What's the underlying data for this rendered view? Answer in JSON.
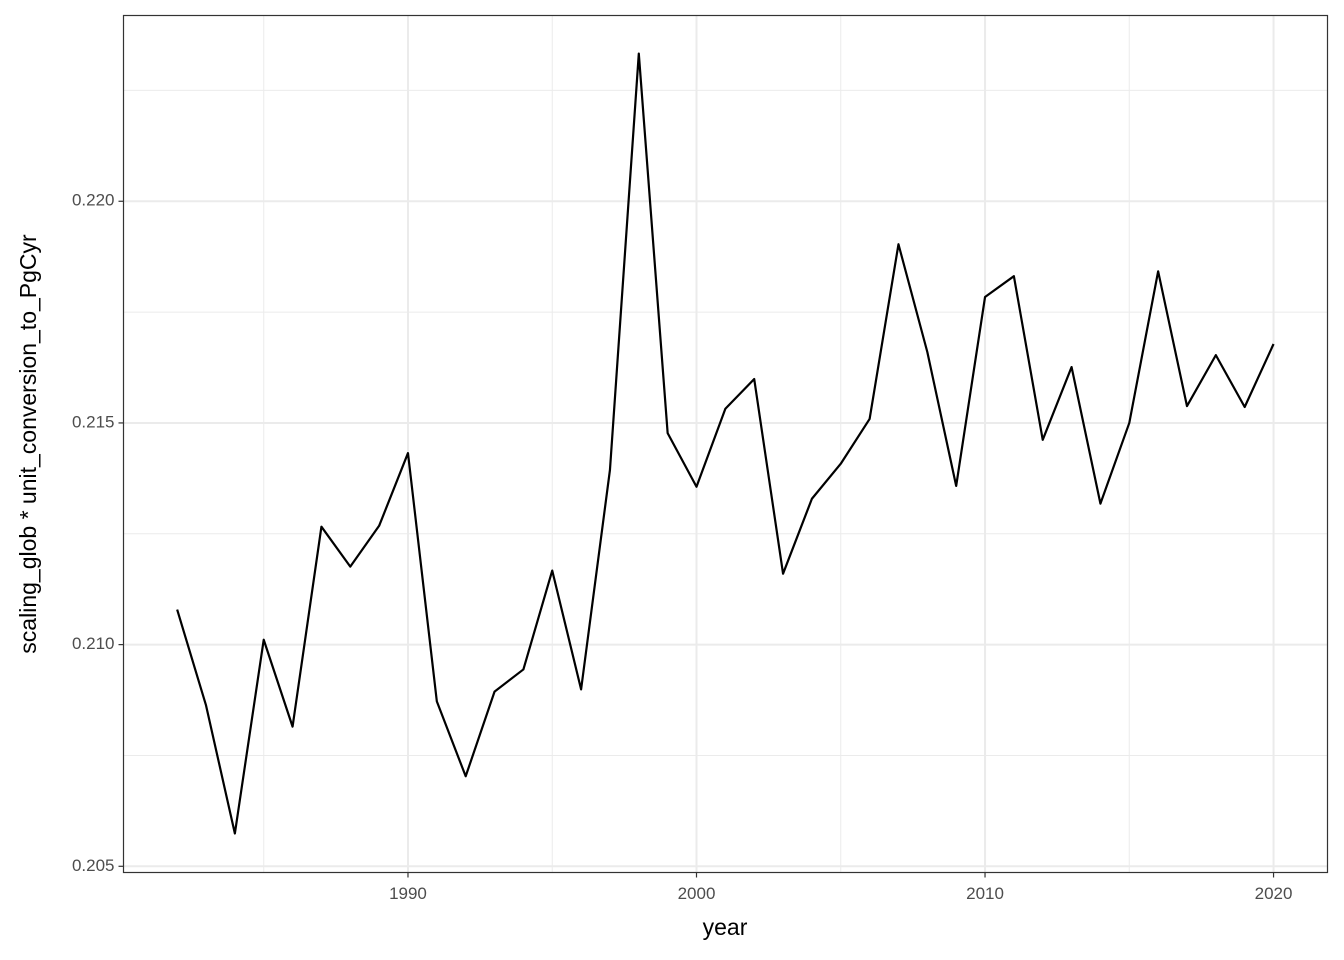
{
  "chart_data": {
    "type": "line",
    "x_label": "year",
    "y_label": "scaling_glob * unit_conversion_to_PgCyr",
    "x": [
      1982,
      1983,
      1984,
      1985,
      1986,
      1987,
      1988,
      1989,
      1990,
      1991,
      1992,
      1993,
      1994,
      1995,
      1996,
      1997,
      1998,
      1999,
      2000,
      2001,
      2002,
      2003,
      2004,
      2005,
      2006,
      2007,
      2008,
      2009,
      2010,
      2011,
      2012,
      2013,
      2014,
      2015,
      2016,
      2017,
      2018,
      2019,
      2020
    ],
    "series": [
      {
        "color": "#000000",
        "values": [
          0.21079,
          0.20863,
          0.20574,
          0.21011,
          0.20815,
          0.21266,
          0.21176,
          0.21268,
          0.21432,
          0.20872,
          0.20703,
          0.20894,
          0.20944,
          0.21167,
          0.20899,
          0.21394,
          0.22333,
          0.21477,
          0.21356,
          0.21532,
          0.21599,
          0.2116,
          0.21329,
          0.21408,
          0.21509,
          0.21903,
          0.2166,
          0.21358,
          0.21784,
          0.21831,
          0.21462,
          0.21626,
          0.21318,
          0.215,
          0.21842,
          0.21538,
          0.21653,
          0.21536,
          0.21678
        ]
      }
    ],
    "xlim": [
      1980.14,
      2021.87
    ],
    "ylim": [
      0.20486,
      0.22419
    ],
    "xticks": [
      1990,
      2000,
      2010,
      2020
    ],
    "yticks": [
      0.205,
      {
        "value": 0.21,
        "label": "0.210"
      },
      0.215,
      {
        "value": 0.22,
        "label": "0.220"
      }
    ],
    "xminorticks": [
      1985,
      1995,
      2005,
      2015
    ],
    "yminorticks": [
      0.2075,
      0.2125,
      0.2175,
      0.2225
    ],
    "grid": true
  }
}
